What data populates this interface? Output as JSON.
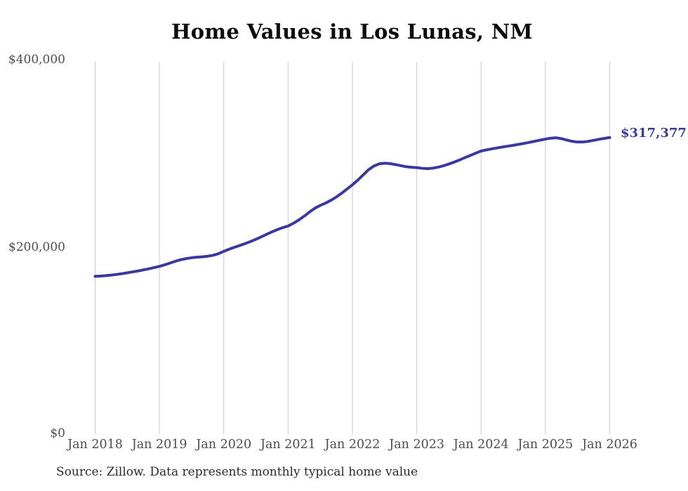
{
  "page": {
    "background_color": "#ffffff",
    "text_color": "#4d4d4d",
    "title_color": "#0d0d0d"
  },
  "chart_data": {
    "type": "line",
    "title": "Home Values in Los Lunas, NM",
    "source_note": "Source: Zillow. Data represents monthly typical home value",
    "xlabel": "",
    "ylabel": "",
    "ylim": [
      0,
      400000
    ],
    "grid": "vertical-only",
    "grid_color": "#c9c9c9",
    "line_color": "#3b399d",
    "end_label": "$317,377",
    "final_value": 317377,
    "x_tick_labels": [
      "Jan 2018",
      "Jan 2019",
      "Jan 2020",
      "Jan 2021",
      "Jan 2022",
      "Jan 2023",
      "Jan 2024",
      "Jan 2025",
      "Jan 2026"
    ],
    "y_ticks": [
      {
        "value": 400000,
        "label": "$400,000"
      },
      {
        "value": 200000,
        "label": "$200,000"
      },
      {
        "value": 0,
        "label": "$0"
      }
    ],
    "series": [
      {
        "name": "Monthly typical home value",
        "start_month": "Jan 2018",
        "end_month": "Jan 2026",
        "interval": "monthly",
        "values": [
          169400,
          169700,
          170100,
          170700,
          171400,
          172200,
          173100,
          174100,
          175100,
          176200,
          177400,
          178700,
          180000,
          181700,
          183600,
          185500,
          187100,
          188300,
          189200,
          189800,
          190200,
          190800,
          191800,
          193500,
          196000,
          198300,
          200400,
          202300,
          204300,
          206500,
          208900,
          211500,
          214200,
          216800,
          219200,
          221300,
          223000,
          226000,
          229500,
          233500,
          238000,
          242000,
          245000,
          247500,
          250500,
          254000,
          258000,
          262500,
          267000,
          272000,
          277500,
          283000,
          287000,
          289300,
          290000,
          289600,
          288600,
          287400,
          286300,
          285700,
          285300,
          284600,
          284200,
          284700,
          285800,
          287300,
          289200,
          291200,
          293500,
          296000,
          298300,
          300700,
          303000,
          304200,
          305300,
          306300,
          307300,
          308200,
          309100,
          310100,
          311100,
          312200,
          313400,
          314600,
          315700,
          316700,
          317100,
          316200,
          314700,
          313300,
          312600,
          312600,
          313300,
          314400,
          315500,
          316500,
          317377
        ]
      }
    ]
  }
}
